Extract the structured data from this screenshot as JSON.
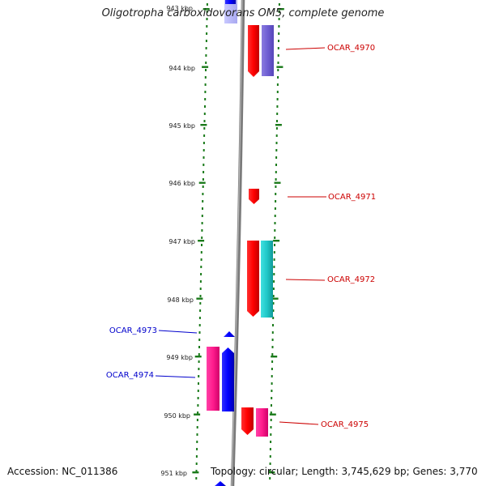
{
  "title": "Oligotropha carboxidovorans OM5, complete genome",
  "accession": "Accession: NC_011386",
  "topology": "Topology: circular; Length: 3,745,629 bp; Genes: 3,770",
  "ruler": [
    "943 kbp",
    "944 kbp",
    "945 kbp",
    "946 kbp",
    "947 kbp",
    "948 kbp",
    "949 kbp",
    "950 kbp",
    "951 kbp"
  ],
  "genes": [
    {
      "name": "OCAR_4970",
      "color": "#cc0000"
    },
    {
      "name": "OCAR_4971",
      "color": "#cc0000"
    },
    {
      "name": "OCAR_4972",
      "color": "#cc0000"
    },
    {
      "name": "OCAR_4973",
      "color": "#0000cc"
    },
    {
      "name": "OCAR_4974",
      "color": "#0000cc"
    },
    {
      "name": "OCAR_4975",
      "color": "#cc0000"
    }
  ],
  "colors": {
    "forward": "#ff0000",
    "reverse": "#0000ff",
    "purple": "#7060d0",
    "cyan": "#20c8c8",
    "magenta": "#ff2090",
    "tick": "#1a7a1a",
    "backbone": "#909090"
  }
}
